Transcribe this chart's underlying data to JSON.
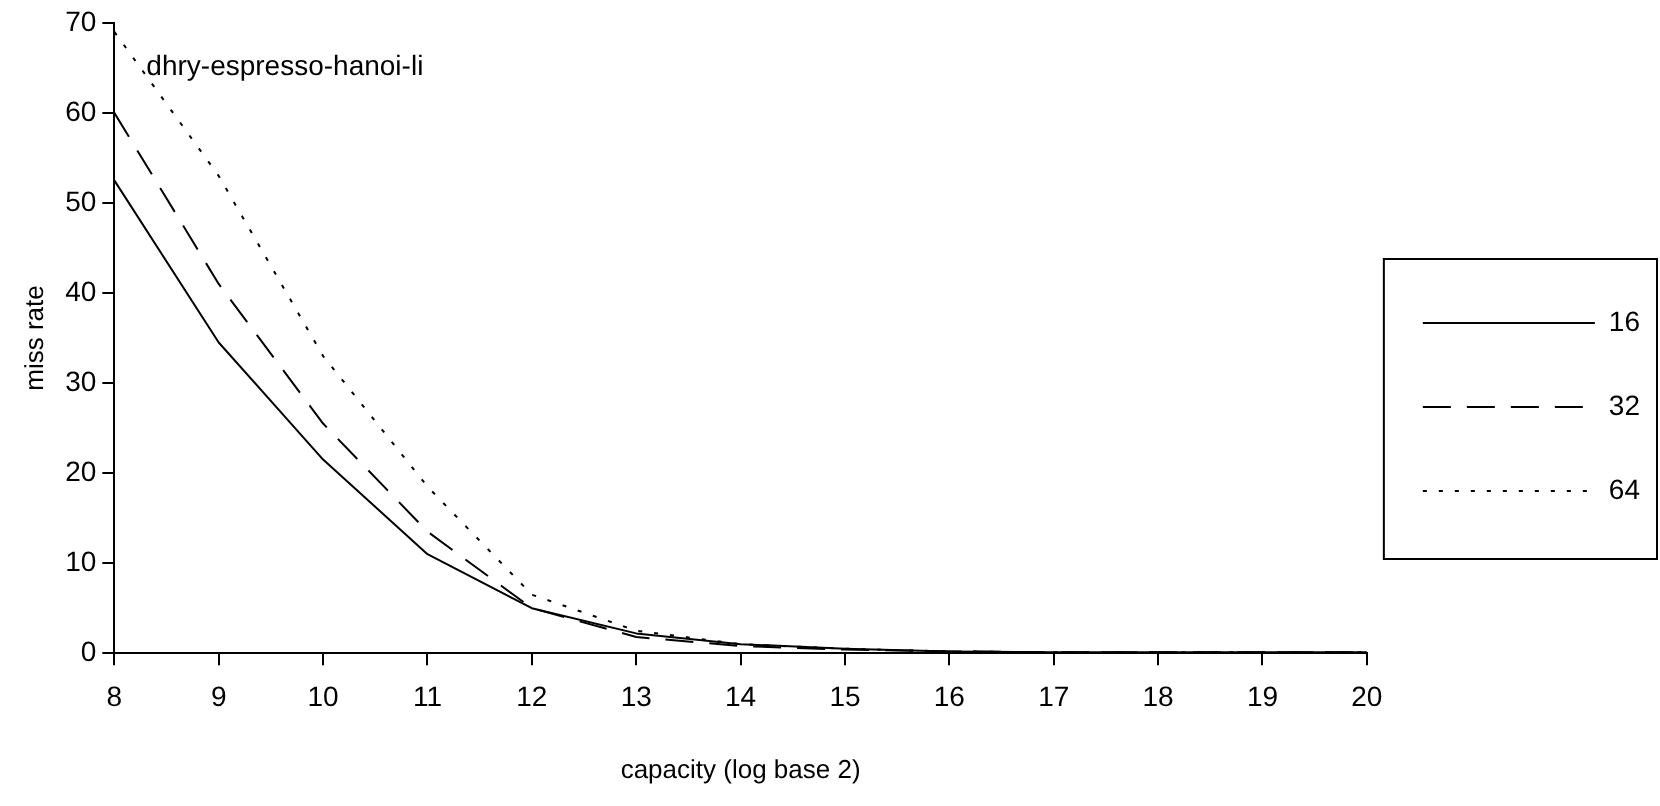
{
  "chart_data": {
    "type": "line",
    "xlabel": "capacity (log base 2)",
    "ylabel": "miss rate",
    "annotations": [
      "dhry-espresso-hanoi-li"
    ],
    "categories": [
      "8",
      "9",
      "10",
      "11",
      "12",
      "13",
      "14",
      "15",
      "16",
      "17",
      "18",
      "19",
      "20"
    ],
    "series": [
      {
        "name": "16",
        "color": "#000000",
        "line_style": "solid",
        "values": [
          52.5,
          34.5,
          21.5,
          11,
          5,
          2.2,
          1,
          0.5,
          0.2,
          0.1,
          0.1,
          0.1,
          0.1
        ]
      },
      {
        "name": "32",
        "color": "#000000",
        "line_style": "dashed",
        "values": [
          60,
          41,
          25.5,
          13.5,
          5,
          1.8,
          0.8,
          0.4,
          0.2,
          0.1,
          0.1,
          0.1,
          0.1
        ]
      },
      {
        "name": "64",
        "color": "#000000",
        "line_style": "dotted",
        "values": [
          69,
          53,
          33,
          18.5,
          6.5,
          2.5,
          1,
          0.5,
          0.2,
          0.1,
          0.1,
          0.1,
          0.1
        ]
      }
    ],
    "ylim": [
      0,
      70
    ],
    "yticks": [
      0,
      10,
      20,
      30,
      40,
      50,
      60,
      70
    ],
    "grid": false,
    "legend": "right",
    "marker": "none"
  }
}
